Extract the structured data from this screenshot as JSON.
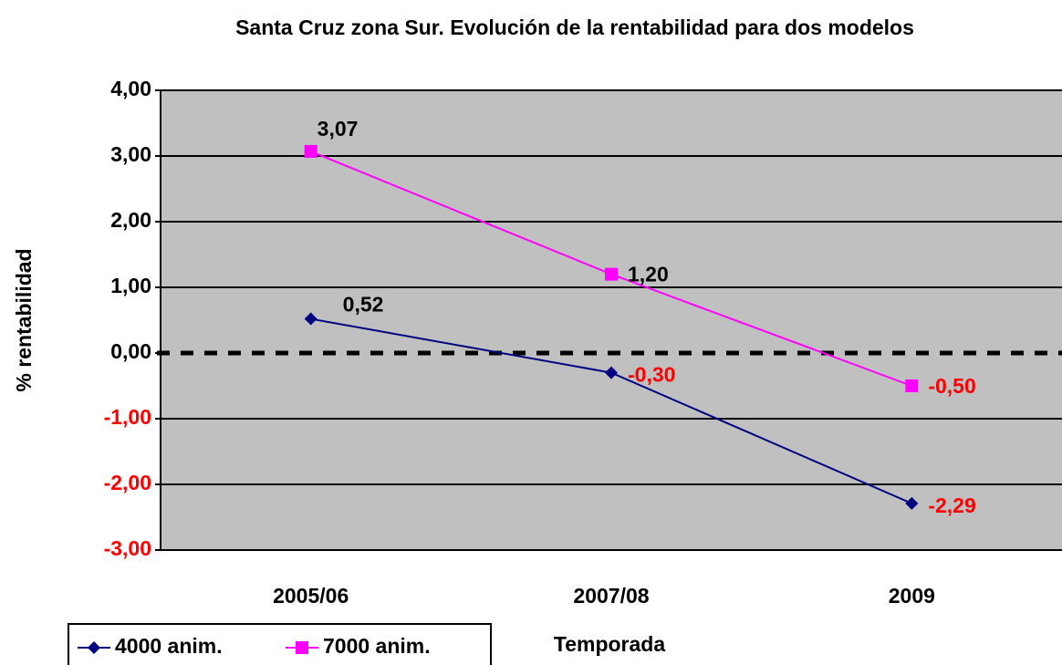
{
  "chart_data": {
    "type": "line",
    "title": "Santa Cruz zona Sur. Evolución de la rentabilidad para dos modelos",
    "x_label": "Temporada",
    "y_label": "% rentabilidad",
    "categories": [
      "2005/06",
      "2007/08",
      "2009"
    ],
    "series": [
      {
        "name": "4000 anim.",
        "color": "#000080",
        "marker": "diamond",
        "values": [
          0.52,
          -0.3,
          -2.29
        ],
        "value_labels": [
          "0,52",
          "-0,30",
          "-2,29"
        ]
      },
      {
        "name": "7000 anim.",
        "color": "#ff00ff",
        "marker": "square",
        "values": [
          3.07,
          1.2,
          -0.5
        ],
        "value_labels": [
          "3,07",
          "1,20",
          "-0,50"
        ]
      }
    ],
    "ylim": [
      -3,
      4
    ],
    "yticks": [
      {
        "value": -3,
        "label": "-3,00"
      },
      {
        "value": -2,
        "label": "-2,00"
      },
      {
        "value": -1,
        "label": "-1,00"
      },
      {
        "value": 0,
        "label": "0,00"
      },
      {
        "value": 1,
        "label": "1,00"
      },
      {
        "value": 2,
        "label": "2,00"
      },
      {
        "value": 3,
        "label": "3,00"
      },
      {
        "value": 4,
        "label": "4,00"
      }
    ],
    "grid": true,
    "legend": "bottom-left",
    "plot_background": "#c0c0c0",
    "negative_label_color": "#ff0000"
  }
}
